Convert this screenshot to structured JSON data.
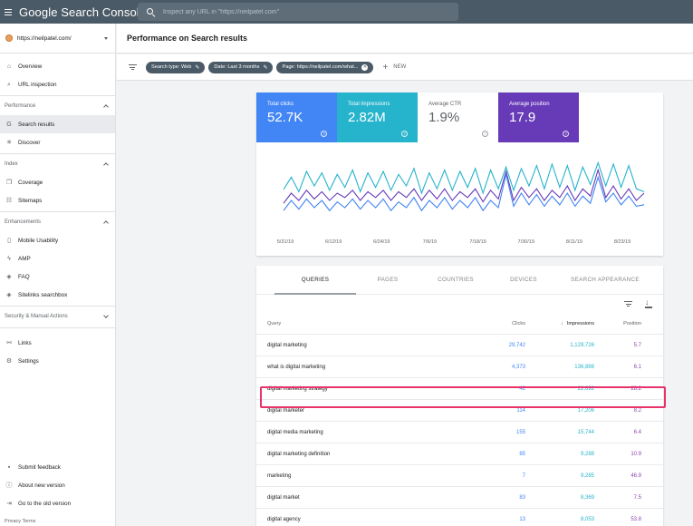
{
  "topbar": {
    "brand": "Google Search Console",
    "search_placeholder": "Inspect any URL in \"https://neilpatel.com\""
  },
  "sidebar": {
    "property": "https://neilpatel.com/",
    "items_top": [
      {
        "label": "Overview",
        "icon": "home-icon",
        "glyph": "⌂"
      },
      {
        "label": "URL inspection",
        "icon": "search-icon",
        "glyph": "⌕"
      }
    ],
    "sections": [
      {
        "title": "Performance",
        "items": [
          {
            "label": "Search results",
            "icon": "google-g-icon",
            "glyph": "G",
            "active": true
          },
          {
            "label": "Discover",
            "icon": "asterisk-icon",
            "glyph": "✳"
          }
        ]
      },
      {
        "title": "Index",
        "items": [
          {
            "label": "Coverage",
            "icon": "copy-icon",
            "glyph": "❐"
          },
          {
            "label": "Sitemaps",
            "icon": "sitemap-icon",
            "glyph": "☷"
          }
        ]
      },
      {
        "title": "Enhancements",
        "items": [
          {
            "label": "Mobile Usability",
            "icon": "phone-icon",
            "glyph": "▯"
          },
          {
            "label": "AMP",
            "icon": "bolt-icon",
            "glyph": "ϟ"
          },
          {
            "label": "FAQ",
            "icon": "diamond-icon",
            "glyph": "◈"
          },
          {
            "label": "Sitelinks searchbox",
            "icon": "diamond-icon",
            "glyph": "◈"
          }
        ]
      },
      {
        "title": "Security & Manual Actions",
        "items": [],
        "collapsed": true
      }
    ],
    "items_other": [
      {
        "label": "Links",
        "icon": "links-icon",
        "glyph": "⚯"
      },
      {
        "label": "Settings",
        "icon": "gear-icon",
        "glyph": "⚙"
      }
    ],
    "bottom_items": [
      {
        "label": "Submit feedback",
        "icon": "feedback-icon",
        "glyph": "▪"
      },
      {
        "label": "About new version",
        "icon": "info-icon",
        "glyph": "ⓘ"
      },
      {
        "label": "Go to the old version",
        "icon": "exit-icon",
        "glyph": "⇥"
      }
    ],
    "footer": "Privacy   Terms"
  },
  "header": {
    "title": "Performance on Search results"
  },
  "filters": {
    "chips": [
      "Search type: Web",
      "Date: Last 3 months",
      "Page: https://neilpatel.com/what..."
    ],
    "new_label": "NEW"
  },
  "metrics": [
    {
      "label": "Total clicks",
      "value": "52.7K"
    },
    {
      "label": "Total impressions",
      "value": "2.82M"
    },
    {
      "label": "Average CTR",
      "value": "1.9%"
    },
    {
      "label": "Average position",
      "value": "17.9"
    }
  ],
  "chart_data": {
    "type": "line",
    "x_ticks": [
      "5/31/19",
      "6/12/19",
      "6/24/19",
      "7/6/19",
      "7/18/19",
      "7/30/19",
      "8/11/19",
      "8/23/19"
    ],
    "series_colors": {
      "impressions": "#26b3cc",
      "clicks": "#4285f4",
      "position": "#673ab7"
    },
    "series": [
      {
        "name": "impressions",
        "values": [
          0.45,
          0.62,
          0.42,
          0.7,
          0.5,
          0.68,
          0.44,
          0.66,
          0.48,
          0.72,
          0.42,
          0.68,
          0.48,
          0.7,
          0.44,
          0.66,
          0.5,
          0.74,
          0.4,
          0.68,
          0.46,
          0.72,
          0.44,
          0.7,
          0.48,
          0.74,
          0.4,
          0.72,
          0.46,
          0.76,
          0.44,
          0.74,
          0.5,
          0.78,
          0.46,
          0.8,
          0.48,
          0.78,
          0.44,
          0.76,
          0.52,
          0.82,
          0.5,
          0.8,
          0.48,
          0.78,
          0.46,
          0.42
        ]
      },
      {
        "name": "position",
        "values": [
          0.26,
          0.4,
          0.3,
          0.44,
          0.32,
          0.42,
          0.3,
          0.4,
          0.34,
          0.44,
          0.3,
          0.42,
          0.34,
          0.44,
          0.3,
          0.42,
          0.34,
          0.46,
          0.3,
          0.44,
          0.32,
          0.46,
          0.3,
          0.42,
          0.34,
          0.46,
          0.28,
          0.44,
          0.32,
          0.7,
          0.3,
          0.48,
          0.34,
          0.46,
          0.3,
          0.44,
          0.34,
          0.5,
          0.3,
          0.46,
          0.36,
          0.72,
          0.34,
          0.5,
          0.32,
          0.46,
          0.3,
          0.4
        ]
      },
      {
        "name": "clicks",
        "values": [
          0.16,
          0.3,
          0.18,
          0.32,
          0.2,
          0.3,
          0.16,
          0.28,
          0.2,
          0.32,
          0.18,
          0.3,
          0.2,
          0.32,
          0.16,
          0.28,
          0.2,
          0.34,
          0.16,
          0.3,
          0.2,
          0.34,
          0.18,
          0.3,
          0.2,
          0.34,
          0.16,
          0.3,
          0.2,
          0.66,
          0.22,
          0.4,
          0.24,
          0.38,
          0.22,
          0.36,
          0.24,
          0.4,
          0.22,
          0.36,
          0.26,
          0.62,
          0.28,
          0.4,
          0.24,
          0.36,
          0.22,
          0.24
        ]
      }
    ]
  },
  "tabs": [
    "QUERIES",
    "PAGES",
    "COUNTRIES",
    "DEVICES",
    "SEARCH APPEARANCE"
  ],
  "table": {
    "headers": {
      "query": "Query",
      "clicks": "Clicks",
      "impressions": "Impressions",
      "position": "Position"
    },
    "rows": [
      {
        "query": "digital marketing",
        "clicks": "29,742",
        "impressions": "1,129,726",
        "position": "5.7"
      },
      {
        "query": "what is digital marketing",
        "clicks": "4,373",
        "impressions": "136,898",
        "position": "6.1"
      },
      {
        "query": "digital marketing strategy",
        "clicks": "42",
        "impressions": "22,692",
        "position": "28.2"
      },
      {
        "query": "digital marketer",
        "clicks": "114",
        "impressions": "17,206",
        "position": "8.2"
      },
      {
        "query": "digital media marketing",
        "clicks": "155",
        "impressions": "15,744",
        "position": "6.4"
      },
      {
        "query": "digital marketing definition",
        "clicks": "85",
        "impressions": "9,288",
        "position": "10.9"
      },
      {
        "query": "marketing",
        "clicks": "7",
        "impressions": "9,285",
        "position": "46.9"
      },
      {
        "query": "digital market",
        "clicks": "83",
        "impressions": "8,369",
        "position": "7.5"
      },
      {
        "query": "digital agency",
        "clicks": "13",
        "impressions": "8,053",
        "position": "53.8"
      }
    ]
  }
}
